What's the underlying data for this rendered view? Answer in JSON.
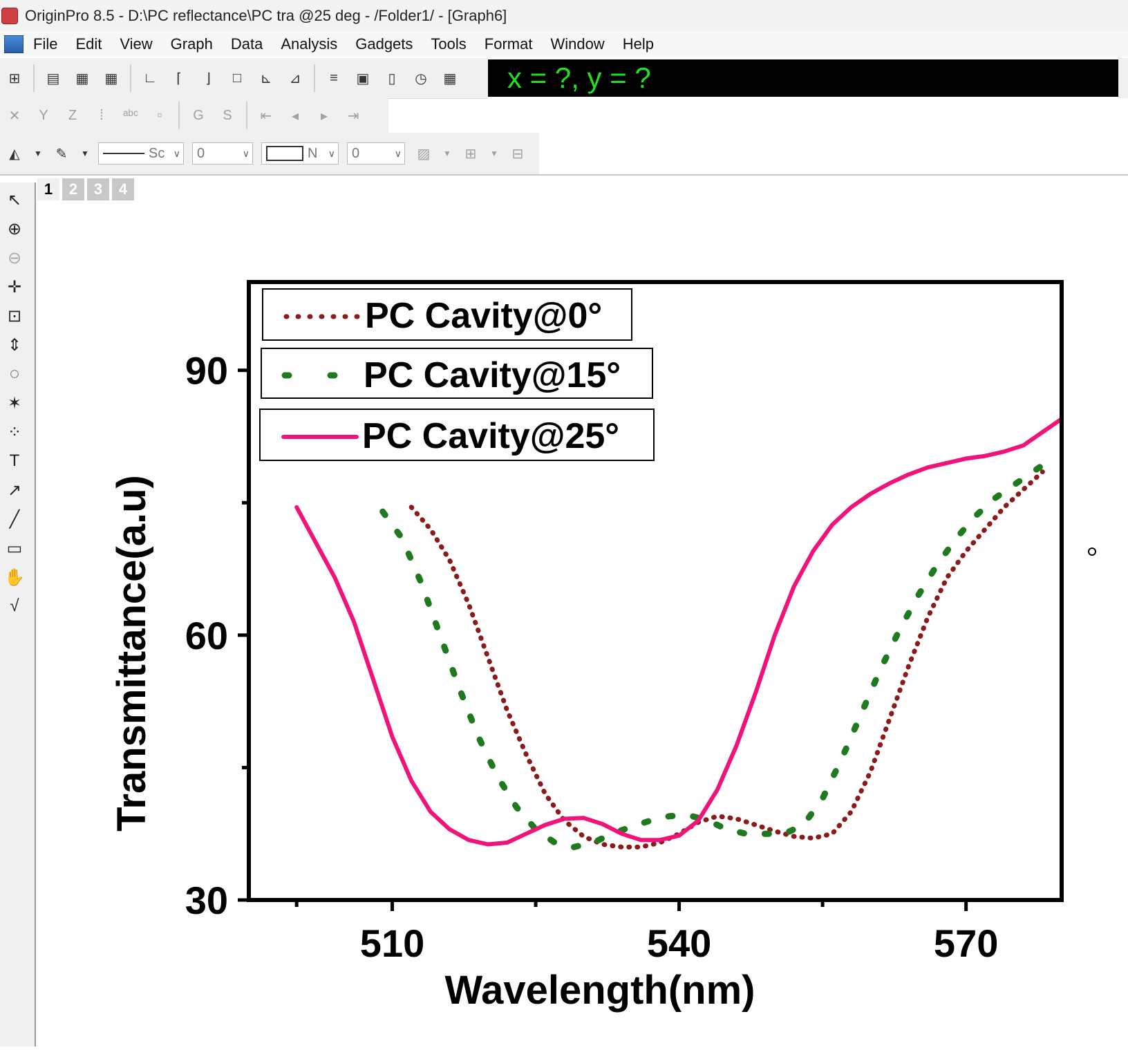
{
  "window": {
    "title": "OriginPro 8.5 - D:\\PC reflectance\\PC tra @25 deg - /Folder1/ - [Graph6]"
  },
  "menu": {
    "items": [
      "File",
      "Edit",
      "View",
      "Graph",
      "Data",
      "Analysis",
      "Gadgets",
      "Tools",
      "Format",
      "Window",
      "Help"
    ]
  },
  "coord_display": "x = ?, y = ?",
  "toolbar3": {
    "line_style": "Sc",
    "line_width": "0",
    "fill_label": "N",
    "fill_width": "0"
  },
  "layers": [
    "1",
    "2",
    "3",
    "4"
  ],
  "colors": {
    "series0": "#8b1a1a",
    "series15": "#1f7a1f",
    "series25": "#f0147a",
    "coord_text": "#1ee01e"
  },
  "chart_data": {
    "type": "line",
    "xlabel": "Wavelength(nm)",
    "ylabel": "Transmittance(a.u)",
    "xlim": [
      495,
      580
    ],
    "ylim": [
      30,
      100
    ],
    "xticks": [
      510,
      540,
      570
    ],
    "yticks": [
      30,
      60,
      90
    ],
    "legend_position": "top-left",
    "series": [
      {
        "name": "PC Cavity@0°",
        "style": "dotted",
        "x": [
          512,
          514,
          516,
          518,
          520,
          522,
          524,
          526,
          528,
          530,
          532,
          534,
          536,
          538,
          540,
          542,
          544,
          546,
          548,
          550,
          552,
          554,
          556,
          558,
          560,
          562,
          564,
          566,
          568,
          570,
          572,
          574,
          576,
          578
        ],
        "y": [
          74.5,
          72,
          68.5,
          63.5,
          57.5,
          51.5,
          46.5,
          42,
          39,
          37.2,
          36.3,
          36,
          36,
          36.5,
          37.5,
          38.8,
          39.5,
          39.2,
          38.5,
          37.8,
          37.2,
          37,
          37.5,
          40,
          44.5,
          50.5,
          56.5,
          62,
          66.5,
          69.5,
          72,
          74.5,
          76.5,
          78.5
        ]
      },
      {
        "name": "PC Cavity@15°",
        "style": "dashed",
        "x": [
          509,
          511,
          513,
          515,
          517,
          519,
          521,
          523,
          525,
          527,
          529,
          531,
          533,
          535,
          537,
          539,
          541,
          543,
          545,
          547,
          549,
          551,
          553,
          555,
          557,
          559,
          561,
          563,
          565,
          567,
          569,
          571,
          573,
          575,
          577,
          579
        ],
        "y": [
          74,
          71,
          66,
          60,
          54,
          48.5,
          44,
          40.5,
          38,
          36.5,
          36,
          36.5,
          37.5,
          38.3,
          39,
          39.5,
          39.6,
          39,
          38,
          37.5,
          37.5,
          37.5,
          38.5,
          41.5,
          46,
          51,
          56,
          60.5,
          64.5,
          68,
          71,
          73.5,
          75.5,
          77,
          78.5,
          80
        ]
      },
      {
        "name": "PC Cavity@25°",
        "style": "solid",
        "x": [
          500,
          502,
          504,
          506,
          508,
          510,
          512,
          514,
          516,
          518,
          520,
          522,
          524,
          526,
          528,
          530,
          532,
          534,
          536,
          538,
          540,
          542,
          544,
          546,
          548,
          550,
          552,
          554,
          556,
          558,
          560,
          562,
          564,
          566,
          568,
          570,
          572,
          574,
          576,
          578,
          580
        ],
        "y": [
          74.5,
          70.5,
          66.5,
          61.5,
          55,
          48.5,
          43.5,
          40,
          38,
          36.8,
          36.3,
          36.5,
          37.5,
          38.5,
          39.2,
          39.3,
          38.6,
          37.5,
          36.8,
          36.8,
          37.3,
          39,
          42.5,
          47.5,
          53.5,
          60,
          65.5,
          69.5,
          72.5,
          74.5,
          76,
          77.2,
          78.2,
          79,
          79.5,
          80,
          80.3,
          80.8,
          81.5,
          83,
          84.5
        ]
      }
    ]
  }
}
